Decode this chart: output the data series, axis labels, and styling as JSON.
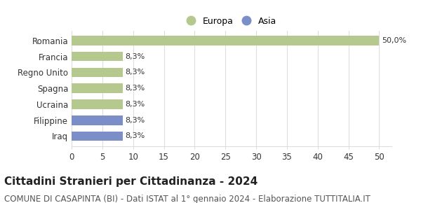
{
  "categories": [
    "Romania",
    "Francia",
    "Regno Unito",
    "Spagna",
    "Ucraina",
    "Filippine",
    "Iraq"
  ],
  "values": [
    50.0,
    8.3,
    8.3,
    8.3,
    8.3,
    8.3,
    8.3
  ],
  "colors": [
    "#b5c98e",
    "#b5c98e",
    "#b5c98e",
    "#b5c98e",
    "#b5c98e",
    "#7b8ec8",
    "#7b8ec8"
  ],
  "labels": [
    "50,0%",
    "8,3%",
    "8,3%",
    "8,3%",
    "8,3%",
    "8,3%",
    "8,3%"
  ],
  "legend_europa_color": "#b5c98e",
  "legend_asia_color": "#7b8ec8",
  "legend_europa_label": "Europa",
  "legend_asia_label": "Asia",
  "title": "Cittadini Stranieri per Cittadinanza - 2024",
  "subtitle": "COMUNE DI CASAPINTA (BI) - Dati ISTAT al 1° gennaio 2024 - Elaborazione TUTTITALIA.IT",
  "xlim": [
    0,
    52
  ],
  "xticks": [
    0,
    5,
    10,
    15,
    20,
    25,
    30,
    35,
    40,
    45,
    50
  ],
  "background_color": "#ffffff",
  "grid_color": "#dddddd",
  "title_fontsize": 11,
  "subtitle_fontsize": 8.5,
  "bar_label_fontsize": 8,
  "tick_label_fontsize": 8.5,
  "legend_fontsize": 9
}
